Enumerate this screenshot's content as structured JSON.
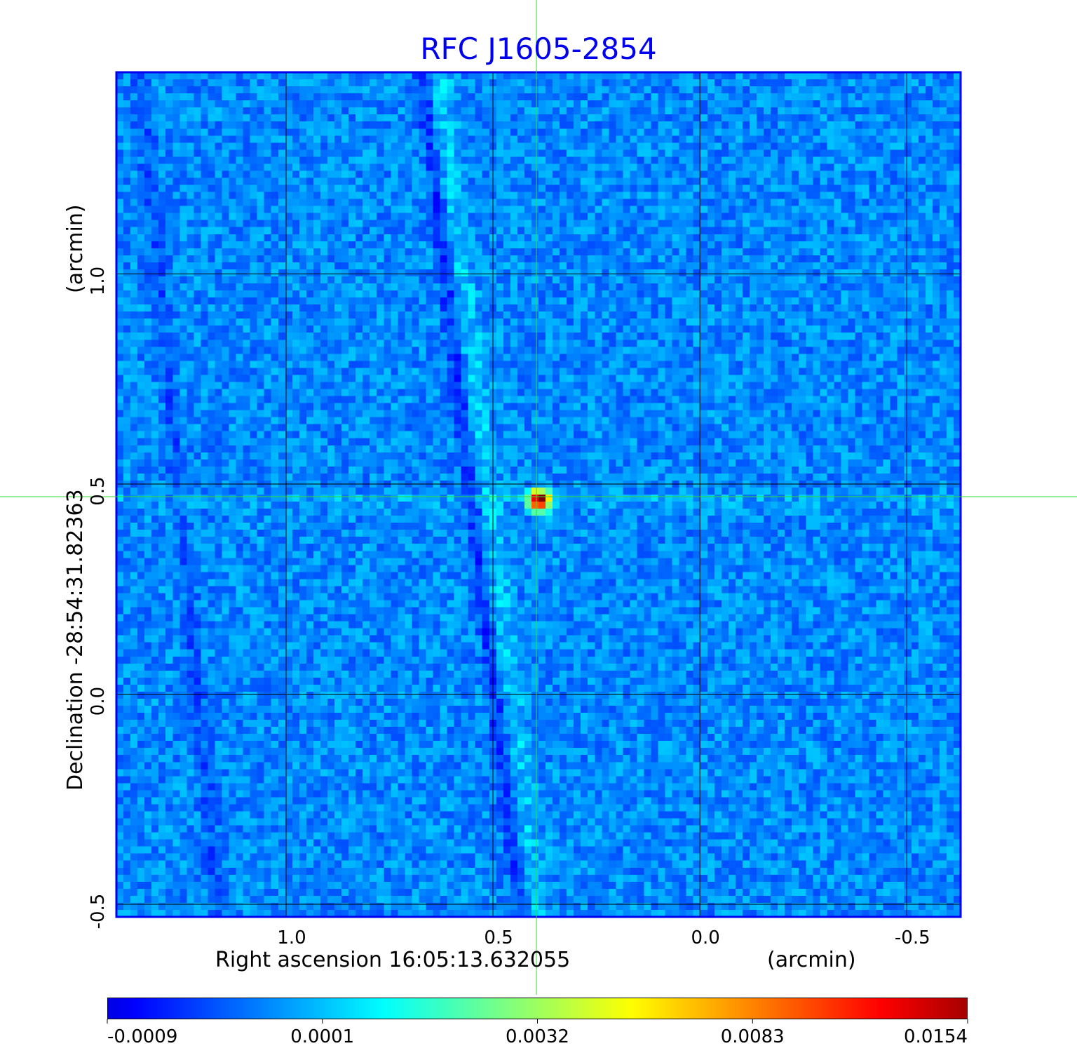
{
  "chart_data": {
    "type": "heatmap",
    "title": "RFC J1605-2854",
    "xlabel": "Right ascension  16:05:13.632055",
    "xunit": "(arcmin)",
    "ylabel": "Declination  -28:54:31.82363",
    "yunit": "(arcmin)",
    "xlim": [
      1.41,
      -0.63
    ],
    "ylim": [
      -0.53,
      1.48
    ],
    "xticks": [
      {
        "value": 1.0,
        "label": "1.0"
      },
      {
        "value": 0.5,
        "label": "0.5"
      },
      {
        "value": 0.0,
        "label": "0.0"
      },
      {
        "value": -0.5,
        "label": "-0.5"
      }
    ],
    "yticks": [
      {
        "value": 1.0,
        "label": "1.0"
      },
      {
        "value": 0.5,
        "label": "0.5"
      },
      {
        "value": 0.0,
        "label": "0.0"
      },
      {
        "value": -0.5,
        "label": "-0.5"
      }
    ],
    "grid": true,
    "crosshair": {
      "x": 0.395,
      "y": 0.47
    },
    "source_peak": {
      "x": 0.395,
      "y": 0.47,
      "value": 0.0154
    },
    "colorbar": {
      "colormap": "jet",
      "ticks": [
        "-0.0009",
        "0.0001",
        "0.0032",
        "0.0083",
        "0.0154"
      ],
      "range": [
        -0.0009,
        0.0154
      ]
    },
    "colors": {
      "title": "#0000ee",
      "frame": "#0000ee",
      "grid": "#000000",
      "crosshair": "#33dd33"
    }
  }
}
